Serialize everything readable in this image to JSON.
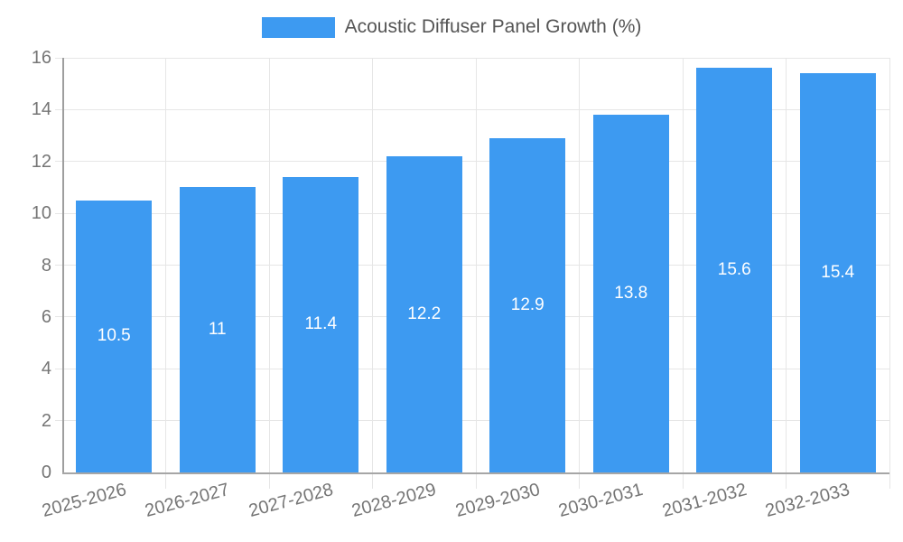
{
  "legend": {
    "label": "Acoustic Diffuser Panel Growth (%)"
  },
  "chart_data": {
    "type": "bar",
    "title": "Acoustic Diffuser Panel Growth (%)",
    "categories": [
      "2025-2026",
      "2026-2027",
      "2027-2028",
      "2028-2029",
      "2029-2030",
      "2030-2031",
      "2031-2032",
      "2032-2033"
    ],
    "values": [
      10.5,
      11,
      11.4,
      12.2,
      12.9,
      13.8,
      15.6,
      15.4
    ],
    "value_labels": [
      "10.5",
      "11",
      "11.4",
      "12.2",
      "12.9",
      "13.8",
      "15.6",
      "15.4"
    ],
    "xlabel": "",
    "ylabel": "",
    "ylim": [
      0,
      16
    ],
    "yticks": [
      0,
      2,
      4,
      6,
      8,
      10,
      12,
      14,
      16
    ],
    "grid": "horizontal-and-vertical",
    "legend_position": "top-center",
    "value_label_position": "center-of-bar",
    "x_label_rotation_deg": -15,
    "colors": {
      "bar": "#3d9af1",
      "gridline": "#e6e6e6",
      "axis_line": "#9e9e9e",
      "tick_text": "#757575",
      "legend_text": "#555555",
      "value_text": "#ffffff"
    }
  }
}
